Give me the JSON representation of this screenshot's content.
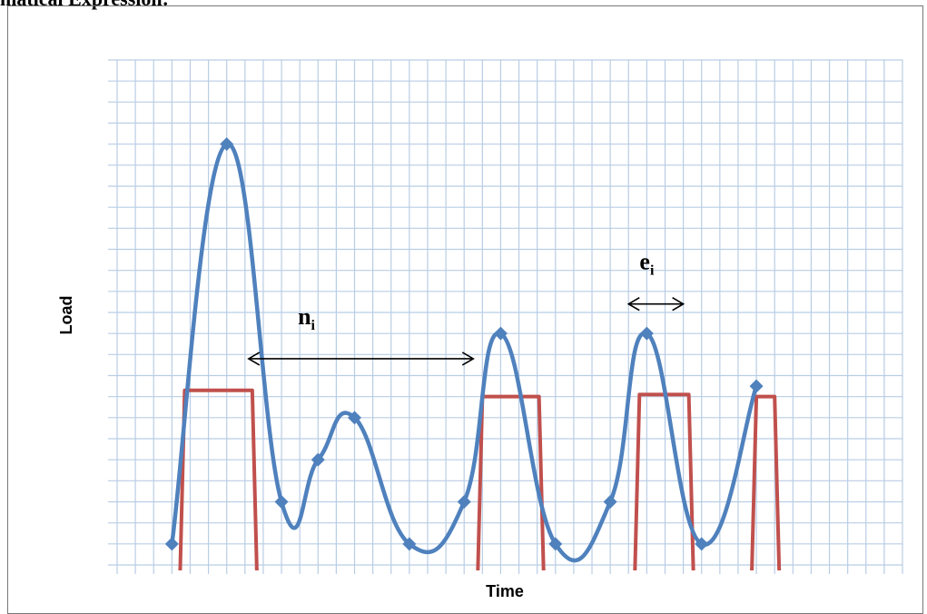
{
  "heading": "matical Expression:",
  "chart_data": {
    "type": "line",
    "xlabel": "Time",
    "ylabel": "Load",
    "xlim": [
      0,
      43
    ],
    "ylim": [
      0,
      24
    ],
    "grid": true,
    "series": [
      {
        "values": [
          {
            "x": 3,
            "y": 1
          },
          {
            "x": 6,
            "y": 20
          },
          {
            "x": 9,
            "y": 3
          },
          {
            "x": 11,
            "y": 5
          },
          {
            "x": 13,
            "y": 7
          },
          {
            "x": 16,
            "y": 1
          },
          {
            "x": 19,
            "y": 3
          },
          {
            "x": 21,
            "y": 11
          },
          {
            "x": 24,
            "y": 1
          },
          {
            "x": 27,
            "y": 3
          },
          {
            "x": 29,
            "y": 11
          },
          {
            "x": 32,
            "y": 1
          },
          {
            "x": 35,
            "y": 8.5
          }
        ]
      }
    ],
    "thresholds": [
      {
        "x_start": 3.7,
        "x_end": 7.4,
        "level": 8.3
      },
      {
        "x_start": 20,
        "x_end": 23.1,
        "level": 8
      },
      {
        "x_start": 28.6,
        "x_end": 31.3,
        "level": 8.1
      },
      {
        "x_start": 35,
        "x_end": 36,
        "level": 8
      }
    ],
    "annotations": [
      {
        "label": "n",
        "subscript": "i",
        "from_x": 7.2,
        "to_x": 19.5,
        "y": 9.8
      },
      {
        "label": "e",
        "subscript": "i",
        "from_x": 28,
        "to_x": 31,
        "y": 12.4
      }
    ],
    "colors": {
      "series": "#4f81bd",
      "threshold": "#c0504d",
      "grid": "#b9cde5"
    }
  }
}
